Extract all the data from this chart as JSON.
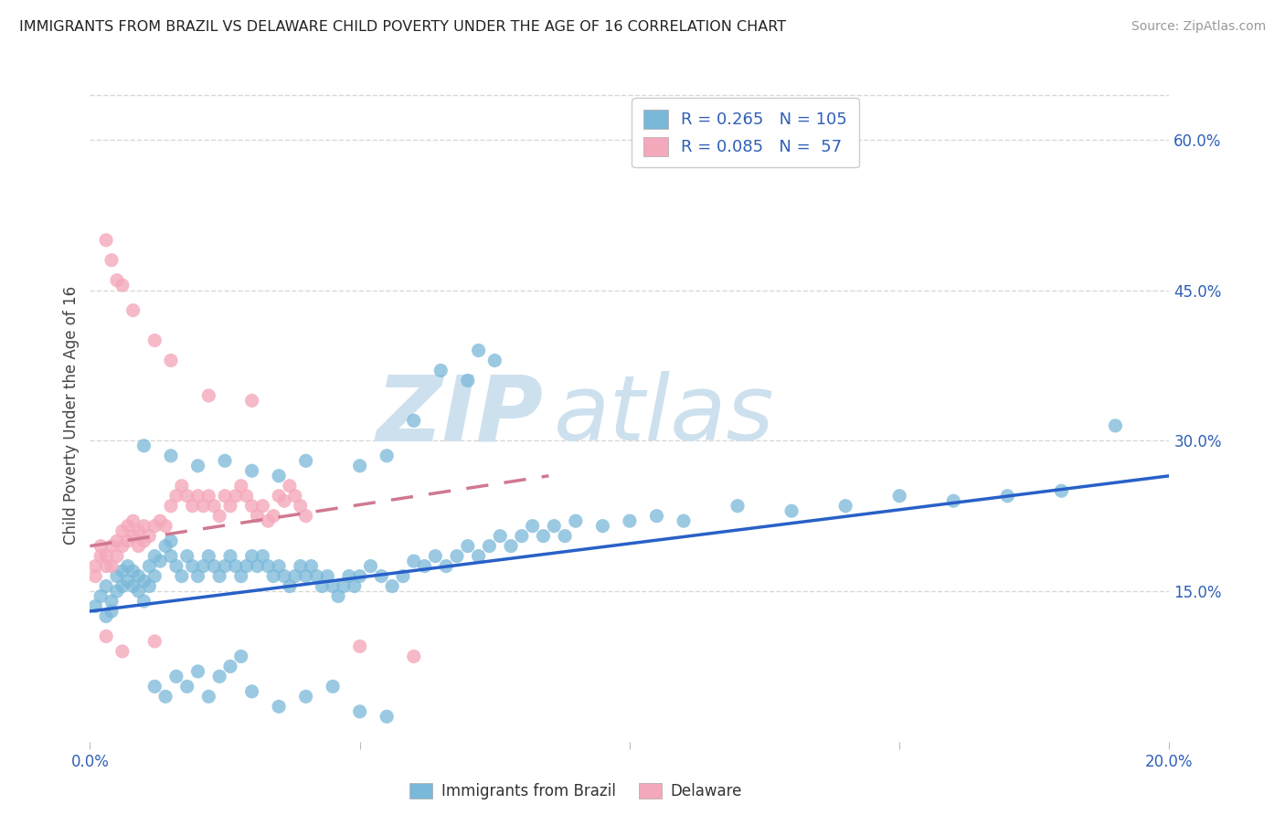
{
  "title": "IMMIGRANTS FROM BRAZIL VS DELAWARE CHILD POVERTY UNDER THE AGE OF 16 CORRELATION CHART",
  "source": "Source: ZipAtlas.com",
  "ylabel": "Child Poverty Under the Age of 16",
  "x_min": 0.0,
  "x_max": 0.2,
  "y_min": 0.0,
  "y_max": 0.65,
  "x_ticks": [
    0.0,
    0.05,
    0.1,
    0.15,
    0.2
  ],
  "y_ticks_right": [
    0.15,
    0.3,
    0.45,
    0.6
  ],
  "y_tick_labels_right": [
    "15.0%",
    "30.0%",
    "45.0%",
    "60.0%"
  ],
  "color_blue": "#7ab8d9",
  "color_pink": "#f4a8bb",
  "color_blue_dark": "#3575c0",
  "color_pink_dark": "#e07898",
  "color_blue_text": "#3060b8",
  "trend_blue": "#2860c8",
  "trend_pink": "#d07890",
  "watermark_color": "#cde0ee",
  "background_color": "#ffffff",
  "grid_color": "#d8d8d8",
  "blue_scatter": [
    [
      0.001,
      0.135
    ],
    [
      0.002,
      0.145
    ],
    [
      0.003,
      0.125
    ],
    [
      0.003,
      0.155
    ],
    [
      0.004,
      0.13
    ],
    [
      0.004,
      0.14
    ],
    [
      0.005,
      0.15
    ],
    [
      0.005,
      0.165
    ],
    [
      0.006,
      0.155
    ],
    [
      0.006,
      0.17
    ],
    [
      0.007,
      0.16
    ],
    [
      0.007,
      0.175
    ],
    [
      0.008,
      0.155
    ],
    [
      0.008,
      0.17
    ],
    [
      0.009,
      0.15
    ],
    [
      0.009,
      0.165
    ],
    [
      0.01,
      0.14
    ],
    [
      0.01,
      0.16
    ],
    [
      0.011,
      0.155
    ],
    [
      0.011,
      0.175
    ],
    [
      0.012,
      0.165
    ],
    [
      0.012,
      0.185
    ],
    [
      0.013,
      0.18
    ],
    [
      0.014,
      0.195
    ],
    [
      0.015,
      0.185
    ],
    [
      0.015,
      0.2
    ],
    [
      0.016,
      0.175
    ],
    [
      0.017,
      0.165
    ],
    [
      0.018,
      0.185
    ],
    [
      0.019,
      0.175
    ],
    [
      0.02,
      0.165
    ],
    [
      0.021,
      0.175
    ],
    [
      0.022,
      0.185
    ],
    [
      0.023,
      0.175
    ],
    [
      0.024,
      0.165
    ],
    [
      0.025,
      0.175
    ],
    [
      0.026,
      0.185
    ],
    [
      0.027,
      0.175
    ],
    [
      0.028,
      0.165
    ],
    [
      0.029,
      0.175
    ],
    [
      0.03,
      0.185
    ],
    [
      0.031,
      0.175
    ],
    [
      0.032,
      0.185
    ],
    [
      0.033,
      0.175
    ],
    [
      0.034,
      0.165
    ],
    [
      0.035,
      0.175
    ],
    [
      0.036,
      0.165
    ],
    [
      0.037,
      0.155
    ],
    [
      0.038,
      0.165
    ],
    [
      0.039,
      0.175
    ],
    [
      0.04,
      0.165
    ],
    [
      0.041,
      0.175
    ],
    [
      0.042,
      0.165
    ],
    [
      0.043,
      0.155
    ],
    [
      0.044,
      0.165
    ],
    [
      0.045,
      0.155
    ],
    [
      0.046,
      0.145
    ],
    [
      0.047,
      0.155
    ],
    [
      0.048,
      0.165
    ],
    [
      0.049,
      0.155
    ],
    [
      0.05,
      0.165
    ],
    [
      0.052,
      0.175
    ],
    [
      0.054,
      0.165
    ],
    [
      0.056,
      0.155
    ],
    [
      0.058,
      0.165
    ],
    [
      0.06,
      0.18
    ],
    [
      0.062,
      0.175
    ],
    [
      0.064,
      0.185
    ],
    [
      0.066,
      0.175
    ],
    [
      0.068,
      0.185
    ],
    [
      0.07,
      0.195
    ],
    [
      0.072,
      0.185
    ],
    [
      0.074,
      0.195
    ],
    [
      0.076,
      0.205
    ],
    [
      0.078,
      0.195
    ],
    [
      0.08,
      0.205
    ],
    [
      0.082,
      0.215
    ],
    [
      0.084,
      0.205
    ],
    [
      0.086,
      0.215
    ],
    [
      0.088,
      0.205
    ],
    [
      0.09,
      0.22
    ],
    [
      0.095,
      0.215
    ],
    [
      0.1,
      0.22
    ],
    [
      0.105,
      0.225
    ],
    [
      0.11,
      0.22
    ],
    [
      0.12,
      0.235
    ],
    [
      0.13,
      0.23
    ],
    [
      0.14,
      0.235
    ],
    [
      0.15,
      0.245
    ],
    [
      0.16,
      0.24
    ],
    [
      0.17,
      0.245
    ],
    [
      0.18,
      0.25
    ],
    [
      0.19,
      0.315
    ],
    [
      0.01,
      0.295
    ],
    [
      0.015,
      0.285
    ],
    [
      0.02,
      0.275
    ],
    [
      0.025,
      0.28
    ],
    [
      0.03,
      0.27
    ],
    [
      0.035,
      0.265
    ],
    [
      0.04,
      0.28
    ],
    [
      0.05,
      0.275
    ],
    [
      0.055,
      0.285
    ],
    [
      0.06,
      0.32
    ],
    [
      0.065,
      0.37
    ],
    [
      0.07,
      0.36
    ],
    [
      0.072,
      0.39
    ],
    [
      0.075,
      0.38
    ],
    [
      0.012,
      0.055
    ],
    [
      0.014,
      0.045
    ],
    [
      0.016,
      0.065
    ],
    [
      0.018,
      0.055
    ],
    [
      0.02,
      0.07
    ],
    [
      0.022,
      0.045
    ],
    [
      0.024,
      0.065
    ],
    [
      0.026,
      0.075
    ],
    [
      0.028,
      0.085
    ],
    [
      0.03,
      0.05
    ],
    [
      0.035,
      0.035
    ],
    [
      0.04,
      0.045
    ],
    [
      0.045,
      0.055
    ],
    [
      0.05,
      0.03
    ],
    [
      0.055,
      0.025
    ]
  ],
  "pink_scatter": [
    [
      0.001,
      0.165
    ],
    [
      0.001,
      0.175
    ],
    [
      0.002,
      0.185
    ],
    [
      0.002,
      0.195
    ],
    [
      0.003,
      0.175
    ],
    [
      0.003,
      0.185
    ],
    [
      0.004,
      0.195
    ],
    [
      0.004,
      0.175
    ],
    [
      0.005,
      0.185
    ],
    [
      0.005,
      0.2
    ],
    [
      0.006,
      0.195
    ],
    [
      0.006,
      0.21
    ],
    [
      0.007,
      0.2
    ],
    [
      0.007,
      0.215
    ],
    [
      0.008,
      0.205
    ],
    [
      0.008,
      0.22
    ],
    [
      0.009,
      0.195
    ],
    [
      0.009,
      0.21
    ],
    [
      0.01,
      0.2
    ],
    [
      0.01,
      0.215
    ],
    [
      0.011,
      0.205
    ],
    [
      0.012,
      0.215
    ],
    [
      0.013,
      0.22
    ],
    [
      0.014,
      0.215
    ],
    [
      0.015,
      0.235
    ],
    [
      0.016,
      0.245
    ],
    [
      0.017,
      0.255
    ],
    [
      0.018,
      0.245
    ],
    [
      0.019,
      0.235
    ],
    [
      0.02,
      0.245
    ],
    [
      0.021,
      0.235
    ],
    [
      0.022,
      0.245
    ],
    [
      0.023,
      0.235
    ],
    [
      0.024,
      0.225
    ],
    [
      0.025,
      0.245
    ],
    [
      0.026,
      0.235
    ],
    [
      0.027,
      0.245
    ],
    [
      0.028,
      0.255
    ],
    [
      0.029,
      0.245
    ],
    [
      0.03,
      0.235
    ],
    [
      0.031,
      0.225
    ],
    [
      0.032,
      0.235
    ],
    [
      0.033,
      0.22
    ],
    [
      0.034,
      0.225
    ],
    [
      0.035,
      0.245
    ],
    [
      0.036,
      0.24
    ],
    [
      0.037,
      0.255
    ],
    [
      0.038,
      0.245
    ],
    [
      0.039,
      0.235
    ],
    [
      0.04,
      0.225
    ],
    [
      0.003,
      0.5
    ],
    [
      0.004,
      0.48
    ],
    [
      0.005,
      0.46
    ],
    [
      0.006,
      0.455
    ],
    [
      0.008,
      0.43
    ],
    [
      0.012,
      0.4
    ],
    [
      0.015,
      0.38
    ],
    [
      0.022,
      0.345
    ],
    [
      0.03,
      0.34
    ],
    [
      0.003,
      0.105
    ],
    [
      0.006,
      0.09
    ],
    [
      0.012,
      0.1
    ],
    [
      0.05,
      0.095
    ],
    [
      0.06,
      0.085
    ]
  ],
  "blue_trend": [
    0.0,
    0.13,
    0.2,
    0.265
  ],
  "pink_trend": [
    0.0,
    0.195,
    0.085,
    0.265
  ]
}
